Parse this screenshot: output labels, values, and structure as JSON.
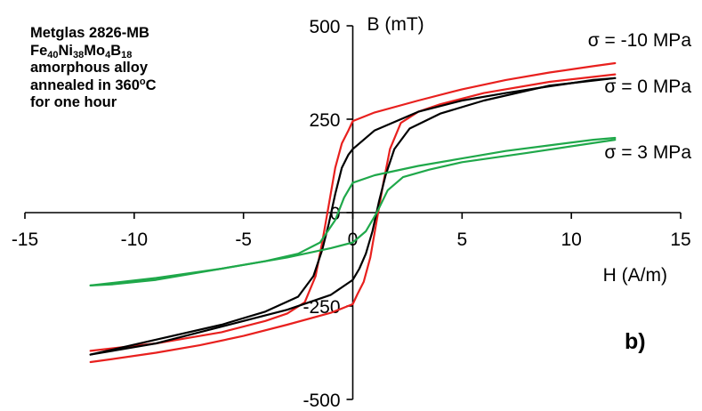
{
  "chart_data": {
    "type": "line",
    "xlabel": "H (A/m)",
    "ylabel": "B (mT)",
    "xlim": [
      -15,
      15
    ],
    "ylim": [
      -500,
      500
    ],
    "x_ticks": [
      "-15",
      "-10",
      "-5",
      "0",
      "5",
      "10",
      "15"
    ],
    "y_ticks": [
      "-500",
      "-250",
      "0",
      "250",
      "500"
    ],
    "panel_label": "b)",
    "annotation": {
      "line1": "Metglas 2826-MB",
      "alloy": [
        {
          "t": "Fe",
          "k": "n"
        },
        {
          "t": "40",
          "k": "sub"
        },
        {
          "t": "Ni",
          "k": "n"
        },
        {
          "t": "38",
          "k": "sub"
        },
        {
          "t": "Mo",
          "k": "n"
        },
        {
          "t": "4",
          "k": "sub"
        },
        {
          "t": "B",
          "k": "n"
        },
        {
          "t": "18",
          "k": "sub"
        }
      ],
      "line3": "amorphous alloy",
      "anneal": [
        {
          "t": "annealed in 360",
          "k": "n"
        },
        {
          "t": "o",
          "k": "sup"
        },
        {
          "t": "C",
          "k": "n"
        }
      ],
      "line5": "for one hour"
    },
    "series": [
      {
        "name": "σ = -10 MPa",
        "color": "#e8201e",
        "upper": [
          [
            -12,
            -370
          ],
          [
            -9,
            -350
          ],
          [
            -6,
            -320
          ],
          [
            -4,
            -290
          ],
          [
            -3,
            -270
          ],
          [
            -2.2,
            -240
          ],
          [
            -1.7,
            -170
          ],
          [
            -1.4,
            -80
          ],
          [
            -1.1,
            20
          ],
          [
            -0.8,
            120
          ],
          [
            -0.5,
            185
          ],
          [
            -0.2,
            220
          ],
          [
            0,
            245
          ],
          [
            1,
            268
          ],
          [
            3,
            300
          ],
          [
            5,
            330
          ],
          [
            7,
            355
          ],
          [
            9,
            375
          ],
          [
            11,
            392
          ],
          [
            12,
            400
          ]
        ],
        "lower": [
          [
            -12,
            -400
          ],
          [
            -11,
            -392
          ],
          [
            -9,
            -375
          ],
          [
            -7,
            -355
          ],
          [
            -5,
            -330
          ],
          [
            -3,
            -300
          ],
          [
            -1,
            -268
          ],
          [
            0,
            -245
          ],
          [
            0.2,
            -220
          ],
          [
            0.5,
            -185
          ],
          [
            0.8,
            -120
          ],
          [
            1.1,
            -20
          ],
          [
            1.4,
            80
          ],
          [
            1.7,
            170
          ],
          [
            2.2,
            240
          ],
          [
            3,
            270
          ],
          [
            4,
            290
          ],
          [
            6,
            320
          ],
          [
            9,
            350
          ],
          [
            12,
            370
          ]
        ]
      },
      {
        "name": "σ = 0 MPa",
        "color": "#000000",
        "upper": [
          [
            -12,
            -380
          ],
          [
            -9,
            -340
          ],
          [
            -6,
            -300
          ],
          [
            -4,
            -265
          ],
          [
            -2.5,
            -225
          ],
          [
            -1.8,
            -170
          ],
          [
            -1.4,
            -100
          ],
          [
            -1.1,
            -30
          ],
          [
            -0.8,
            50
          ],
          [
            -0.5,
            120
          ],
          [
            -0.2,
            155
          ],
          [
            0,
            170
          ],
          [
            1,
            220
          ],
          [
            3,
            270
          ],
          [
            5,
            300
          ],
          [
            7,
            320
          ],
          [
            9,
            338
          ],
          [
            11,
            355
          ],
          [
            12,
            360
          ]
        ],
        "lower": [
          [
            -12,
            -380
          ],
          [
            -11,
            -370
          ],
          [
            -9,
            -350
          ],
          [
            -7,
            -320
          ],
          [
            -5,
            -290
          ],
          [
            -3,
            -260
          ],
          [
            -1,
            -220
          ],
          [
            0,
            -180
          ],
          [
            0.3,
            -150
          ],
          [
            0.6,
            -110
          ],
          [
            0.9,
            -50
          ],
          [
            1.2,
            30
          ],
          [
            1.5,
            100
          ],
          [
            1.9,
            170
          ],
          [
            2.6,
            225
          ],
          [
            4,
            265
          ],
          [
            6,
            300
          ],
          [
            9,
            340
          ],
          [
            12,
            360
          ]
        ]
      },
      {
        "name": "σ = 3 MPa",
        "color": "#1fa84a",
        "upper": [
          [
            -12,
            -195
          ],
          [
            -9,
            -175
          ],
          [
            -6,
            -150
          ],
          [
            -4,
            -130
          ],
          [
            -2.5,
            -110
          ],
          [
            -1.5,
            -80
          ],
          [
            -0.8,
            -20
          ],
          [
            -0.4,
            40
          ],
          [
            0,
            80
          ],
          [
            1,
            100
          ],
          [
            3,
            125
          ],
          [
            5,
            145
          ],
          [
            7,
            165
          ],
          [
            9,
            180
          ],
          [
            11,
            195
          ],
          [
            12,
            200
          ]
        ],
        "lower": [
          [
            -12,
            -195
          ],
          [
            -11,
            -192
          ],
          [
            -9,
            -180
          ],
          [
            -7,
            -160
          ],
          [
            -5,
            -140
          ],
          [
            -3,
            -120
          ],
          [
            -1,
            -95
          ],
          [
            0,
            -80
          ],
          [
            0.6,
            -50
          ],
          [
            1.1,
            0
          ],
          [
            1.6,
            60
          ],
          [
            2.3,
            95
          ],
          [
            3.5,
            115
          ],
          [
            5,
            135
          ],
          [
            8,
            160
          ],
          [
            12,
            195
          ]
        ]
      }
    ]
  }
}
